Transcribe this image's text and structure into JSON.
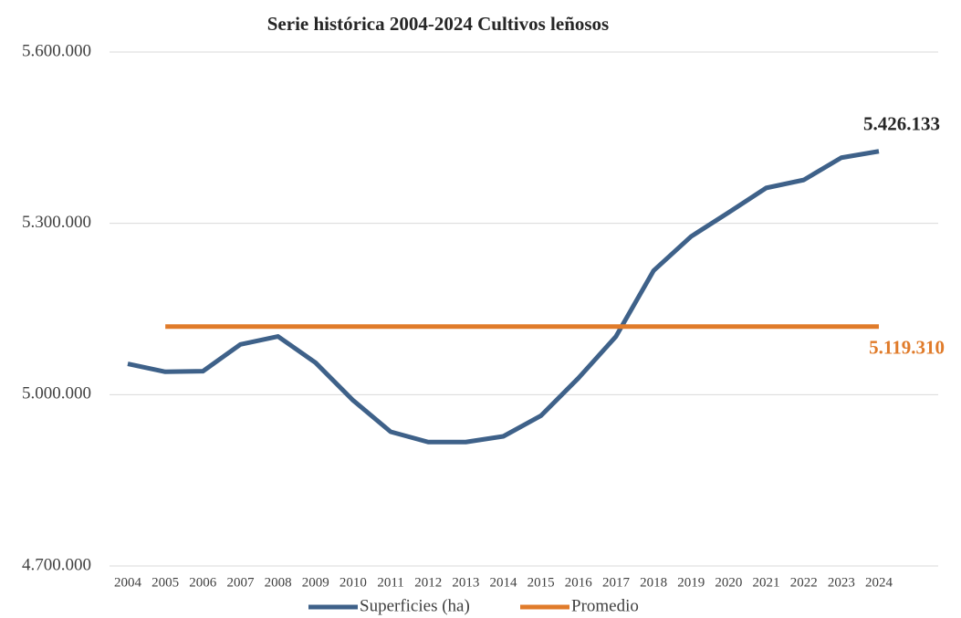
{
  "chart_data": {
    "type": "line",
    "title": "Serie histórica 2004-2024 Cultivos leñosos",
    "categories": [
      "2004",
      "2005",
      "2006",
      "2007",
      "2008",
      "2009",
      "2010",
      "2011",
      "2012",
      "2013",
      "2014",
      "2015",
      "2016",
      "2017",
      "2018",
      "2019",
      "2020",
      "2021",
      "2022",
      "2023",
      "2024"
    ],
    "series": [
      {
        "name": "Superficies (ha)",
        "color": "#3e6189",
        "values": [
          5054000,
          5040000,
          5041000,
          5088000,
          5102000,
          5056000,
          4990000,
          4935000,
          4917000,
          4917000,
          4927000,
          4963000,
          5029000,
          5102000,
          5217000,
          5277000,
          5319000,
          5362000,
          5376000,
          5415000,
          5426133
        ],
        "value_labels": [
          null,
          null,
          null,
          null,
          null,
          null,
          null,
          null,
          null,
          null,
          null,
          null,
          null,
          null,
          null,
          null,
          null,
          null,
          null,
          null,
          "5.426.133"
        ]
      },
      {
        "name": "Promedio",
        "color": "#e07b2a",
        "values": [
          null,
          5119310,
          5119310,
          5119310,
          5119310,
          5119310,
          5119310,
          5119310,
          5119310,
          5119310,
          5119310,
          5119310,
          5119310,
          5119310,
          5119310,
          5119310,
          5119310,
          5119310,
          5119310,
          5119310,
          5119310
        ],
        "value_labels": [
          null,
          null,
          null,
          null,
          null,
          null,
          null,
          null,
          null,
          null,
          null,
          null,
          null,
          null,
          null,
          null,
          null,
          null,
          null,
          null,
          "5.119.310"
        ]
      }
    ],
    "ylim": [
      4700000,
      5600000
    ],
    "yticks": [
      {
        "value": 4700000,
        "label": "4.700.000"
      },
      {
        "value": 5000000,
        "label": "5.000.000"
      },
      {
        "value": 5300000,
        "label": "5.300.000"
      },
      {
        "value": 5600000,
        "label": "5.600.000"
      }
    ],
    "grid": true,
    "legend": "bottom"
  }
}
